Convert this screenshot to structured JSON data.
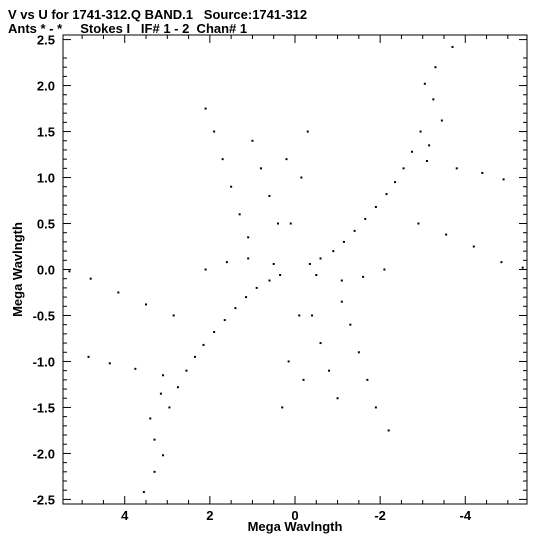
{
  "header": {
    "line1": "V vs U for 1741-312.Q BAND.1   Source:1741-312",
    "line2": "Ants * - *     Stokes I   IF# 1 - 2  Chan# 1"
  },
  "chart_data": {
    "type": "scatter",
    "title": "V vs U for 1741-312.Q BAND.1   Source:1741-312",
    "subtitle": "Ants * - *     Stokes I   IF# 1 - 2  Chan# 1",
    "xlabel": "Mega Wavlngth",
    "ylabel": "Mega Wavlngth",
    "xlim": [
      5.45,
      -5.45
    ],
    "ylim": [
      -2.55,
      2.55
    ],
    "x_ticks": [
      4,
      2,
      0,
      -2,
      -4
    ],
    "x_tick_labels": [
      "4",
      "2",
      "0",
      "-2",
      "-4"
    ],
    "y_ticks": [
      2.5,
      2.0,
      1.5,
      1.0,
      0.5,
      0.0,
      -0.5,
      -1.0,
      -1.5,
      -2.0,
      -2.5
    ],
    "y_tick_labels": [
      "2.5",
      "2.0",
      "1.5",
      "1.0",
      "0.5",
      "0.0",
      "-0.5",
      "-1.0",
      "-1.5",
      "-2.0",
      "-2.5"
    ],
    "grid": false,
    "legend": "none",
    "marker_color": "#000000",
    "points": [
      [
        -3.7,
        2.42
      ],
      [
        -3.3,
        2.2
      ],
      [
        -3.05,
        2.02
      ],
      [
        -3.25,
        1.85
      ],
      [
        -3.45,
        1.62
      ],
      [
        -2.95,
        1.5
      ],
      [
        -3.15,
        1.35
      ],
      [
        -2.75,
        1.28
      ],
      [
        -2.55,
        1.1
      ],
      [
        -2.35,
        0.95
      ],
      [
        -2.15,
        0.82
      ],
      [
        -1.9,
        0.68
      ],
      [
        -1.65,
        0.55
      ],
      [
        -1.4,
        0.42
      ],
      [
        -1.15,
        0.3
      ],
      [
        -0.9,
        0.2
      ],
      [
        -0.6,
        0.12
      ],
      [
        -0.35,
        0.06
      ],
      [
        3.55,
        -2.42
      ],
      [
        3.3,
        -2.2
      ],
      [
        3.1,
        -2.02
      ],
      [
        3.3,
        -1.85
      ],
      [
        3.4,
        -1.62
      ],
      [
        2.95,
        -1.5
      ],
      [
        3.15,
        -1.35
      ],
      [
        2.75,
        -1.28
      ],
      [
        2.55,
        -1.1
      ],
      [
        2.35,
        -0.95
      ],
      [
        2.15,
        -0.82
      ],
      [
        1.9,
        -0.68
      ],
      [
        1.65,
        -0.55
      ],
      [
        1.4,
        -0.42
      ],
      [
        1.15,
        -0.3
      ],
      [
        0.9,
        -0.2
      ],
      [
        0.6,
        -0.12
      ],
      [
        0.35,
        -0.06
      ],
      [
        -5.35,
        0.02
      ],
      [
        -4.85,
        0.08
      ],
      [
        -4.2,
        0.25
      ],
      [
        -3.55,
        0.38
      ],
      [
        -2.9,
        0.5
      ],
      [
        5.3,
        -0.02
      ],
      [
        4.8,
        -0.1
      ],
      [
        4.15,
        -0.25
      ],
      [
        3.5,
        -0.38
      ],
      [
        2.85,
        -0.5
      ],
      [
        -4.9,
        0.98
      ],
      [
        -4.4,
        1.05
      ],
      [
        -3.8,
        1.1
      ],
      [
        -3.1,
        1.18
      ],
      [
        4.85,
        -0.95
      ],
      [
        4.35,
        -1.02
      ],
      [
        3.75,
        -1.08
      ],
      [
        3.1,
        -1.15
      ],
      [
        -2.1,
        0.0
      ],
      [
        -1.6,
        -0.08
      ],
      [
        -1.1,
        -0.12
      ],
      [
        -0.5,
        -0.06
      ],
      [
        2.1,
        0.0
      ],
      [
        1.6,
        0.08
      ],
      [
        1.1,
        0.12
      ],
      [
        0.5,
        0.06
      ],
      [
        0.1,
        0.5
      ],
      [
        -0.15,
        1.0
      ],
      [
        -0.3,
        1.5
      ],
      [
        0.2,
        1.2
      ],
      [
        -0.1,
        -0.5
      ],
      [
        0.15,
        -1.0
      ],
      [
        0.3,
        -1.5
      ],
      [
        -0.2,
        -1.2
      ],
      [
        2.1,
        1.75
      ],
      [
        1.9,
        1.5
      ],
      [
        1.7,
        1.2
      ],
      [
        1.5,
        0.9
      ],
      [
        1.3,
        0.6
      ],
      [
        1.1,
        0.35
      ],
      [
        -2.2,
        -1.75
      ],
      [
        -1.9,
        -1.5
      ],
      [
        -1.7,
        -1.2
      ],
      [
        -1.5,
        -0.9
      ],
      [
        -1.3,
        -0.6
      ],
      [
        -1.1,
        -0.35
      ],
      [
        1.0,
        1.4
      ],
      [
        0.8,
        1.1
      ],
      [
        0.6,
        0.8
      ],
      [
        0.4,
        0.5
      ],
      [
        -1.0,
        -1.4
      ],
      [
        -0.8,
        -1.1
      ],
      [
        -0.6,
        -0.8
      ],
      [
        -0.4,
        -0.5
      ]
    ]
  }
}
